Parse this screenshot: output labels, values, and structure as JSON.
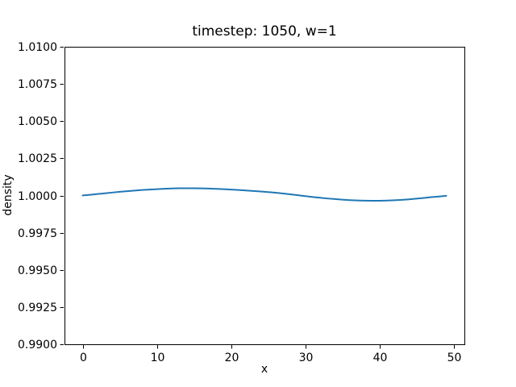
{
  "figure": {
    "background": "#ffffff",
    "axes_edge_color": "#000000"
  },
  "chart_data": {
    "type": "line",
    "title": "timestep: 1050, w=1",
    "xlabel": "x",
    "ylabel": "density",
    "grid": false,
    "legend": null,
    "line_color": "#1f77b4",
    "xlim": [
      -2.45,
      51.45
    ],
    "ylim": [
      0.99,
      1.01
    ],
    "xticks": {
      "values": [
        0,
        10,
        20,
        30,
        40,
        50
      ],
      "labels": [
        "0",
        "10",
        "20",
        "30",
        "40",
        "50"
      ]
    },
    "yticks": {
      "values": [
        0.99,
        0.9925,
        0.995,
        0.9975,
        1.0,
        1.0025,
        1.005,
        1.0075,
        1.01
      ],
      "labels": [
        "0.9900",
        "0.9925",
        "0.9950",
        "0.9975",
        "1.0000",
        "1.0025",
        "1.0050",
        "1.0075",
        "1.0100"
      ]
    },
    "x": [
      0,
      1,
      2,
      3,
      4,
      5,
      6,
      7,
      8,
      9,
      10,
      11,
      12,
      13,
      14,
      15,
      16,
      17,
      18,
      19,
      20,
      21,
      22,
      23,
      24,
      25,
      26,
      27,
      28,
      29,
      30,
      31,
      32,
      33,
      34,
      35,
      36,
      37,
      38,
      39,
      40,
      41,
      42,
      43,
      44,
      45,
      46,
      47,
      48,
      49
    ],
    "y": [
      1.00001,
      1.00005,
      1.0001,
      1.00015,
      1.0002,
      1.00025,
      1.00029,
      1.00033,
      1.00037,
      1.0004,
      1.00043,
      1.000455,
      1.000475,
      1.000485,
      1.00049,
      1.000485,
      1.00048,
      1.000465,
      1.00045,
      1.000425,
      1.0004,
      1.00037,
      1.00034,
      1.000305,
      1.00027,
      1.00023,
      1.00019,
      1.000135,
      1.00008,
      1.00002,
      0.99996,
      0.9999,
      0.99985,
      0.9998,
      0.99976,
      0.99972,
      0.99969,
      0.99967,
      0.999655,
      0.99965,
      0.99965,
      0.99966,
      0.99968,
      0.99971,
      0.999745,
      0.99979,
      0.99984,
      0.99989,
      0.999935,
      0.99998
    ]
  }
}
